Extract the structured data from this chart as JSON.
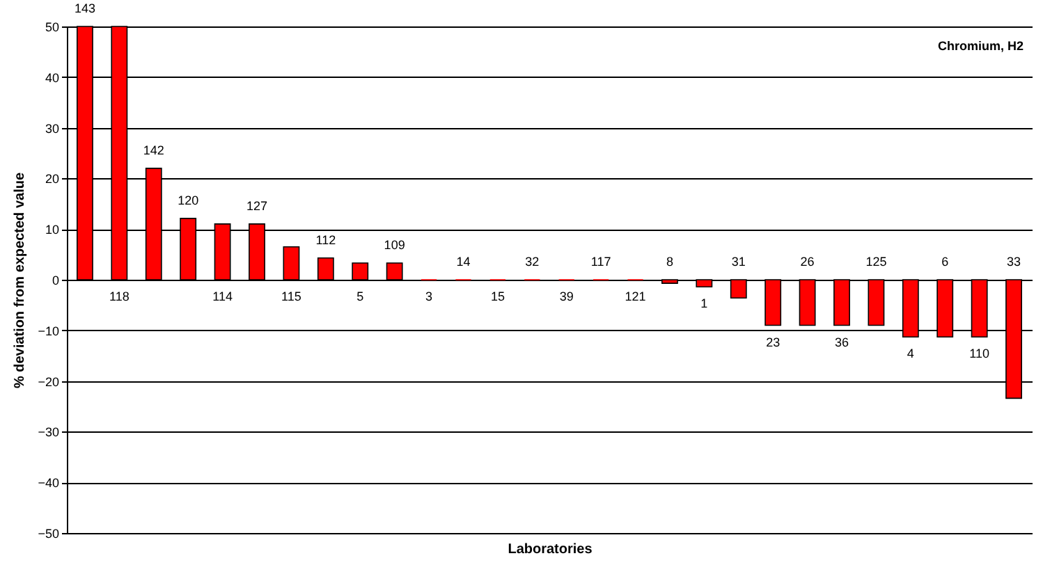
{
  "chart_data": {
    "type": "bar",
    "xlabel": "Laboratories",
    "ylabel": "% deviation from expected value",
    "annotations": [
      "Chromium, H2"
    ],
    "categories": [
      "143",
      "118",
      "142",
      "120",
      "114",
      "127",
      "115",
      "112",
      "5",
      "109",
      "3",
      "14",
      "15",
      "32",
      "39",
      "117",
      "121",
      "8",
      "1",
      "31",
      "23",
      "26",
      "36",
      "125",
      "4",
      "6",
      "110",
      "33"
    ],
    "values": [
      50,
      50,
      22,
      12.1,
      11,
      11,
      6.5,
      4.3,
      3.3,
      3.3,
      0,
      0,
      0,
      0,
      0,
      0,
      0,
      -0.7,
      -1.4,
      -3.6,
      -9,
      -9,
      -9,
      -9,
      -11.3,
      -11.3,
      -11.3,
      -23.4
    ],
    "color": "#ff0000",
    "ylim": [
      -50,
      50
    ],
    "yticks": [
      -50,
      -40,
      -30,
      -20,
      -10,
      0,
      10,
      20,
      30,
      40,
      50
    ],
    "grid": "y",
    "tick_labels": "y"
  }
}
